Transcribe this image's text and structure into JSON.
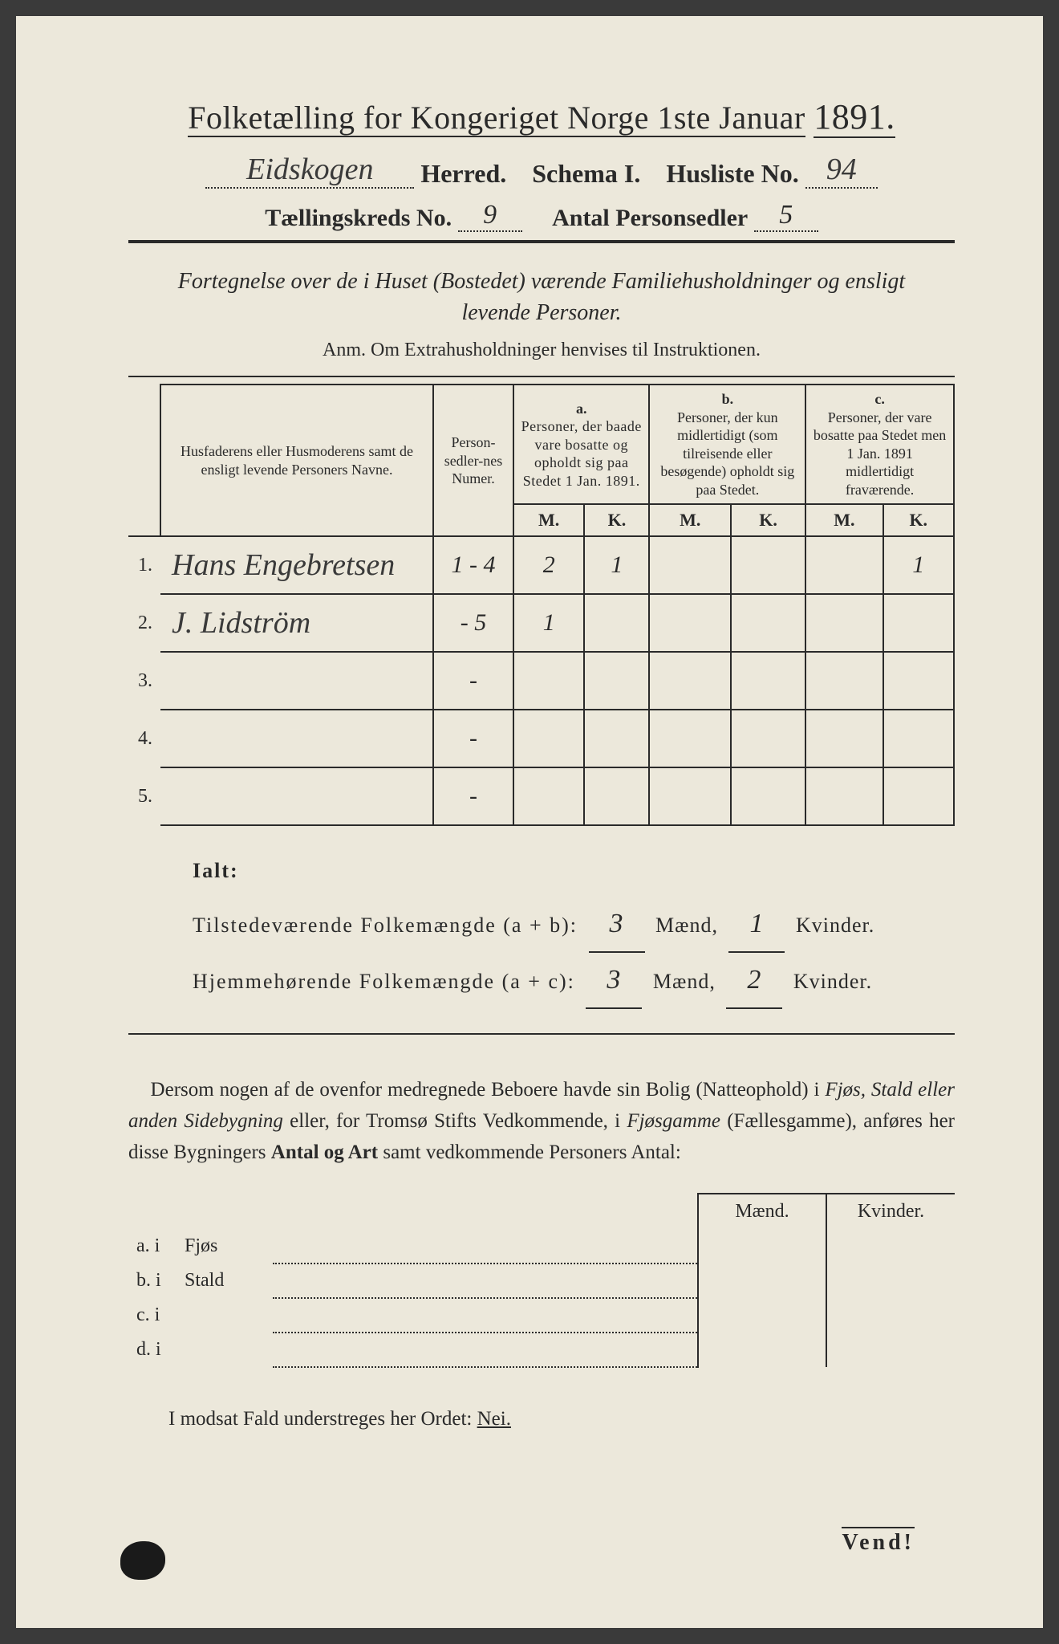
{
  "header": {
    "title_prefix": "Folketælling for Kongeriget Norge 1ste Januar",
    "year": "1891.",
    "herred_hw": "Eidskogen",
    "herred_suffix": "Herred.",
    "schema": "Schema I.",
    "husliste_label": "Husliste No.",
    "husliste_no": "94",
    "kreds_label": "Tællingskreds No.",
    "kreds_no": "9",
    "antal_label": "Antal Personsedler",
    "antal_no": "5"
  },
  "subtitle": {
    "line1": "Fortegnelse over de i Huset (Bostedet) værende Familiehusholdninger og ensligt",
    "line2": "levende Personer."
  },
  "anm": "Anm.  Om Extrahusholdninger henvises til Instruktionen.",
  "table_headers": {
    "names": "Husfaderens eller Husmoderens samt de ensligt levende Personers Navne.",
    "numer": "Person-sedler-nes Numer.",
    "a_label": "a.",
    "a_text": "Personer, der baade vare bosatte og opholdt sig paa Stedet 1 Jan. 1891.",
    "b_label": "b.",
    "b_text": "Personer, der kun midlertidigt (som tilreisende eller besøgende) opholdt sig paa Stedet.",
    "c_label": "c.",
    "c_text": "Personer, der vare bosatte paa Stedet men 1 Jan. 1891 midlertidigt fraværende.",
    "M": "M.",
    "K": "K."
  },
  "rows": [
    {
      "n": "1.",
      "name": "Hans Engebretsen",
      "numer": "1 - 4",
      "aM": "2",
      "aK": "1",
      "bM": "",
      "bK": "",
      "cM": "",
      "cK": "1"
    },
    {
      "n": "2.",
      "name": "J. Lidström",
      "numer": "- 5",
      "aM": "1",
      "aK": "",
      "bM": "",
      "bK": "",
      "cM": "",
      "cK": ""
    },
    {
      "n": "3.",
      "name": "",
      "numer": "-",
      "aM": "",
      "aK": "",
      "bM": "",
      "bK": "",
      "cM": "",
      "cK": ""
    },
    {
      "n": "4.",
      "name": "",
      "numer": "-",
      "aM": "",
      "aK": "",
      "bM": "",
      "bK": "",
      "cM": "",
      "cK": ""
    },
    {
      "n": "5.",
      "name": "",
      "numer": "-",
      "aM": "",
      "aK": "",
      "bM": "",
      "bK": "",
      "cM": "",
      "cK": ""
    }
  ],
  "ialt": {
    "label": "Ialt:",
    "line1_pre": "Tilstedeværende Folkemængde (a + b):",
    "line1_m": "3",
    "line1_k": "1",
    "line2_pre": "Hjemmehørende Folkemængde (a + c):",
    "line2_m": "3",
    "line2_k": "2",
    "maend": "Mænd,",
    "kvinder": "Kvinder."
  },
  "para": "Dersom nogen af de ovenfor medregnede Beboere havde sin Bolig (Natteophold) i Fjøs, Stald eller anden Sidebygning eller, for Tromsø Stifts Vedkommende, i Fjøsgamme (Fællesgamme), anføres her disse Bygningers Antal og Art samt vedkommende Personers Antal:",
  "subtable": {
    "maend": "Mænd.",
    "kvinder": "Kvinder.",
    "rows": [
      {
        "lbl": "a.  i",
        "type": "Fjøs"
      },
      {
        "lbl": "b.  i",
        "type": "Stald"
      },
      {
        "lbl": "c.  i",
        "type": ""
      },
      {
        "lbl": "d.  i",
        "type": ""
      }
    ]
  },
  "nei_line_pre": "I modsat Fald understreges her Ordet:",
  "nei": "Nei.",
  "vend": "Vend!",
  "colors": {
    "paper": "#ece8db",
    "ink": "#2a2a2a",
    "bg": "#3a3a3a"
  }
}
